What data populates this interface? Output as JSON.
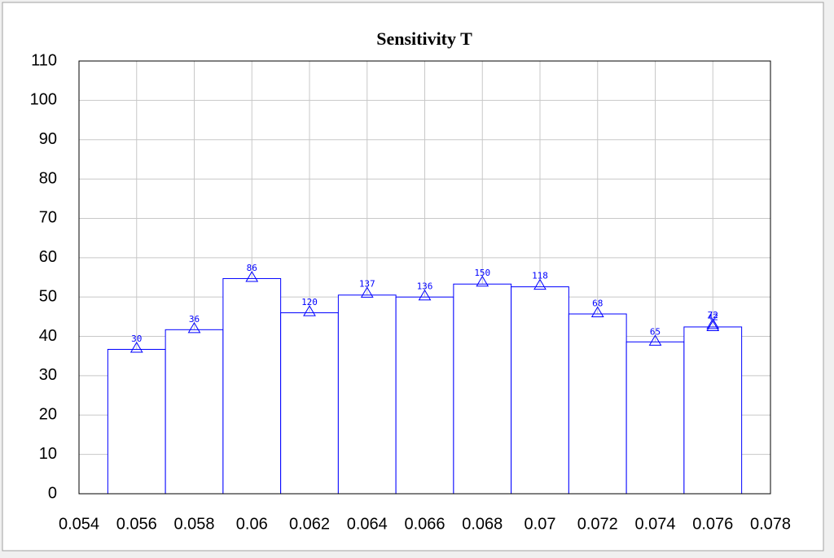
{
  "chart_data": {
    "type": "histogram",
    "title": "Sensitivity T",
    "bins": [
      0.055,
      0.057,
      0.059,
      0.061,
      0.063,
      0.065,
      0.067,
      0.069,
      0.071,
      0.073,
      0.075,
      0.077
    ],
    "values": [
      36.7,
      41.7,
      54.7,
      46,
      50.5,
      50,
      53.3,
      52.6,
      45.7,
      38.6,
      42.4
    ],
    "color": "#0000ff",
    "points": {
      "x": [
        0.056,
        0.058,
        0.06,
        0.062,
        0.064,
        0.066,
        0.068,
        0.07,
        0.072,
        0.074,
        0.076,
        0.076
      ],
      "y": [
        37,
        42,
        55,
        46.3,
        51,
        50.3,
        53.8,
        53,
        46,
        38.8,
        43,
        42.5
      ],
      "labels": [
        30,
        36,
        86,
        120,
        137,
        136,
        150,
        118,
        68,
        65,
        72,
        42
      ]
    },
    "xlim": [
      0.054,
      0.078
    ],
    "xticks": [
      0.054,
      0.056,
      0.058,
      0.06,
      0.062,
      0.064,
      0.066,
      0.068,
      0.07,
      0.072,
      0.074,
      0.076,
      0.078
    ],
    "ylim": [
      0,
      110
    ],
    "yticks": [
      0,
      10,
      20,
      30,
      40,
      50,
      60,
      70,
      80,
      90,
      100,
      110
    ],
    "grid": true
  }
}
